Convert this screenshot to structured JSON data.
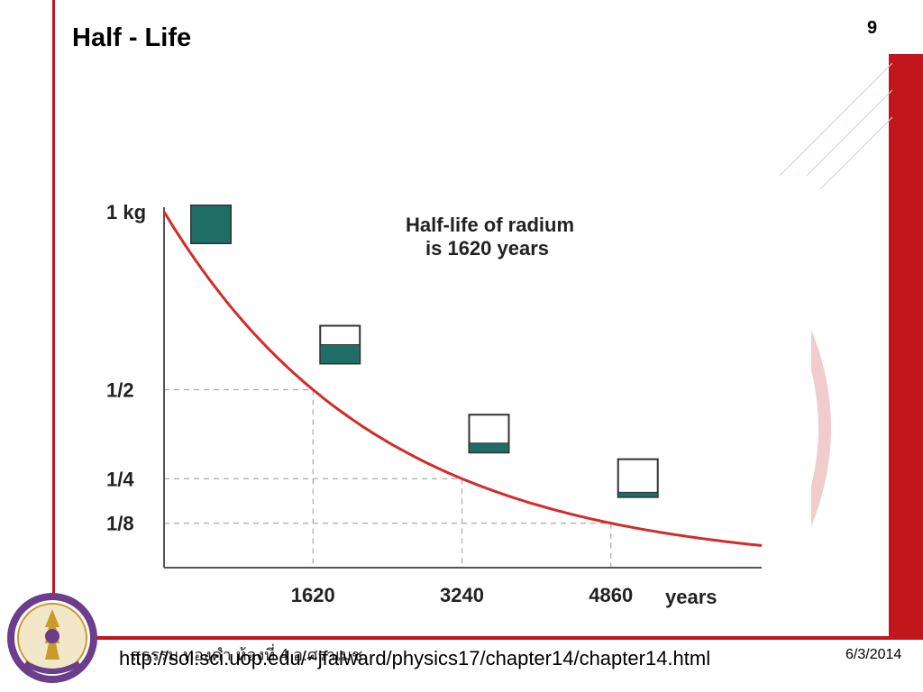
{
  "slide": {
    "title": "Half - Life",
    "number": "9",
    "url": "http://sol.sci.uop.edu/~jfalward/physics17/chapter14/chapter14.html",
    "thai_footer": "สุธรรม ทองคำ ห้องที่ 4 อ.ศราเมช",
    "date": "6/3/2014"
  },
  "colors": {
    "frame_red": "#c0161c",
    "curve_red": "#d42a2a",
    "teal_fill": "#1e6e66",
    "gridline": "#aaaaaa"
  },
  "chart_data": {
    "type": "line",
    "annotation": [
      "Half-life of radium",
      "is 1620 years"
    ],
    "xlabel": "years",
    "xlim": [
      0,
      6500
    ],
    "ylim": [
      0,
      1
    ],
    "x_ticks": [
      {
        "value": 1620,
        "label": "1620"
      },
      {
        "value": 3240,
        "label": "3240"
      },
      {
        "value": 4860,
        "label": "4860"
      }
    ],
    "y_ticks": [
      {
        "value": 1,
        "label": "1 kg"
      },
      {
        "value": 0.5,
        "label": "1/2"
      },
      {
        "value": 0.25,
        "label": "1/4"
      },
      {
        "value": 0.125,
        "label": "1/8"
      }
    ],
    "half_life": 1620,
    "initial": 1,
    "series": [
      {
        "x": [
          0,
          500,
          1000,
          1620,
          2400,
          3240,
          4000,
          4860,
          5600,
          6500
        ],
        "values": [
          1,
          0.807,
          0.652,
          0.5,
          0.358,
          0.25,
          0.181,
          0.125,
          0.091,
          0.062
        ]
      }
    ],
    "containers": [
      {
        "x": 0,
        "fill": 1
      },
      {
        "x": 1620,
        "fill": 0.5
      },
      {
        "x": 3240,
        "fill": 0.25
      },
      {
        "x": 4860,
        "fill": 0.125
      }
    ]
  }
}
